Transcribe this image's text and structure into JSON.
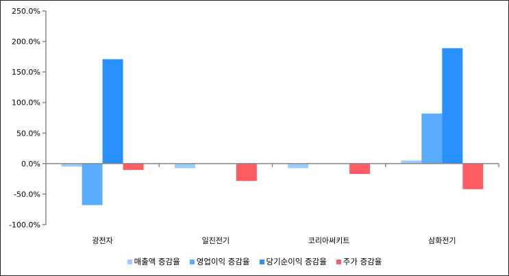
{
  "chart_data": {
    "type": "bar",
    "categories": [
      "광전자",
      "일진전기",
      "코리아써키트",
      "삼화전기"
    ],
    "series": [
      {
        "name": "매출액 증감율",
        "color": "#99ccff",
        "values": [
          -5,
          -7.5,
          -7.5,
          5
        ]
      },
      {
        "name": "영업이익 증감율",
        "color": "#5aacff",
        "values": [
          -68,
          null,
          null,
          82
        ]
      },
      {
        "name": "당기순이익 증감율",
        "color": "#2891ff",
        "values": [
          171,
          null,
          null,
          189
        ]
      },
      {
        "name": "주가 증감율",
        "color": "#ff5c64",
        "values": [
          -10.5,
          -28.5,
          -17,
          -42
        ]
      }
    ],
    "ylim": [
      -100,
      250
    ],
    "yticks": [
      -100,
      -50,
      0,
      50,
      100,
      150,
      200,
      250
    ],
    "ytick_labels": [
      "-100.0%",
      "-50.0%",
      "0.0%",
      "50.0%",
      "100.0%",
      "150.0%",
      "200.0%",
      "250.0%"
    ],
    "grid": false,
    "legend": "bottom"
  }
}
